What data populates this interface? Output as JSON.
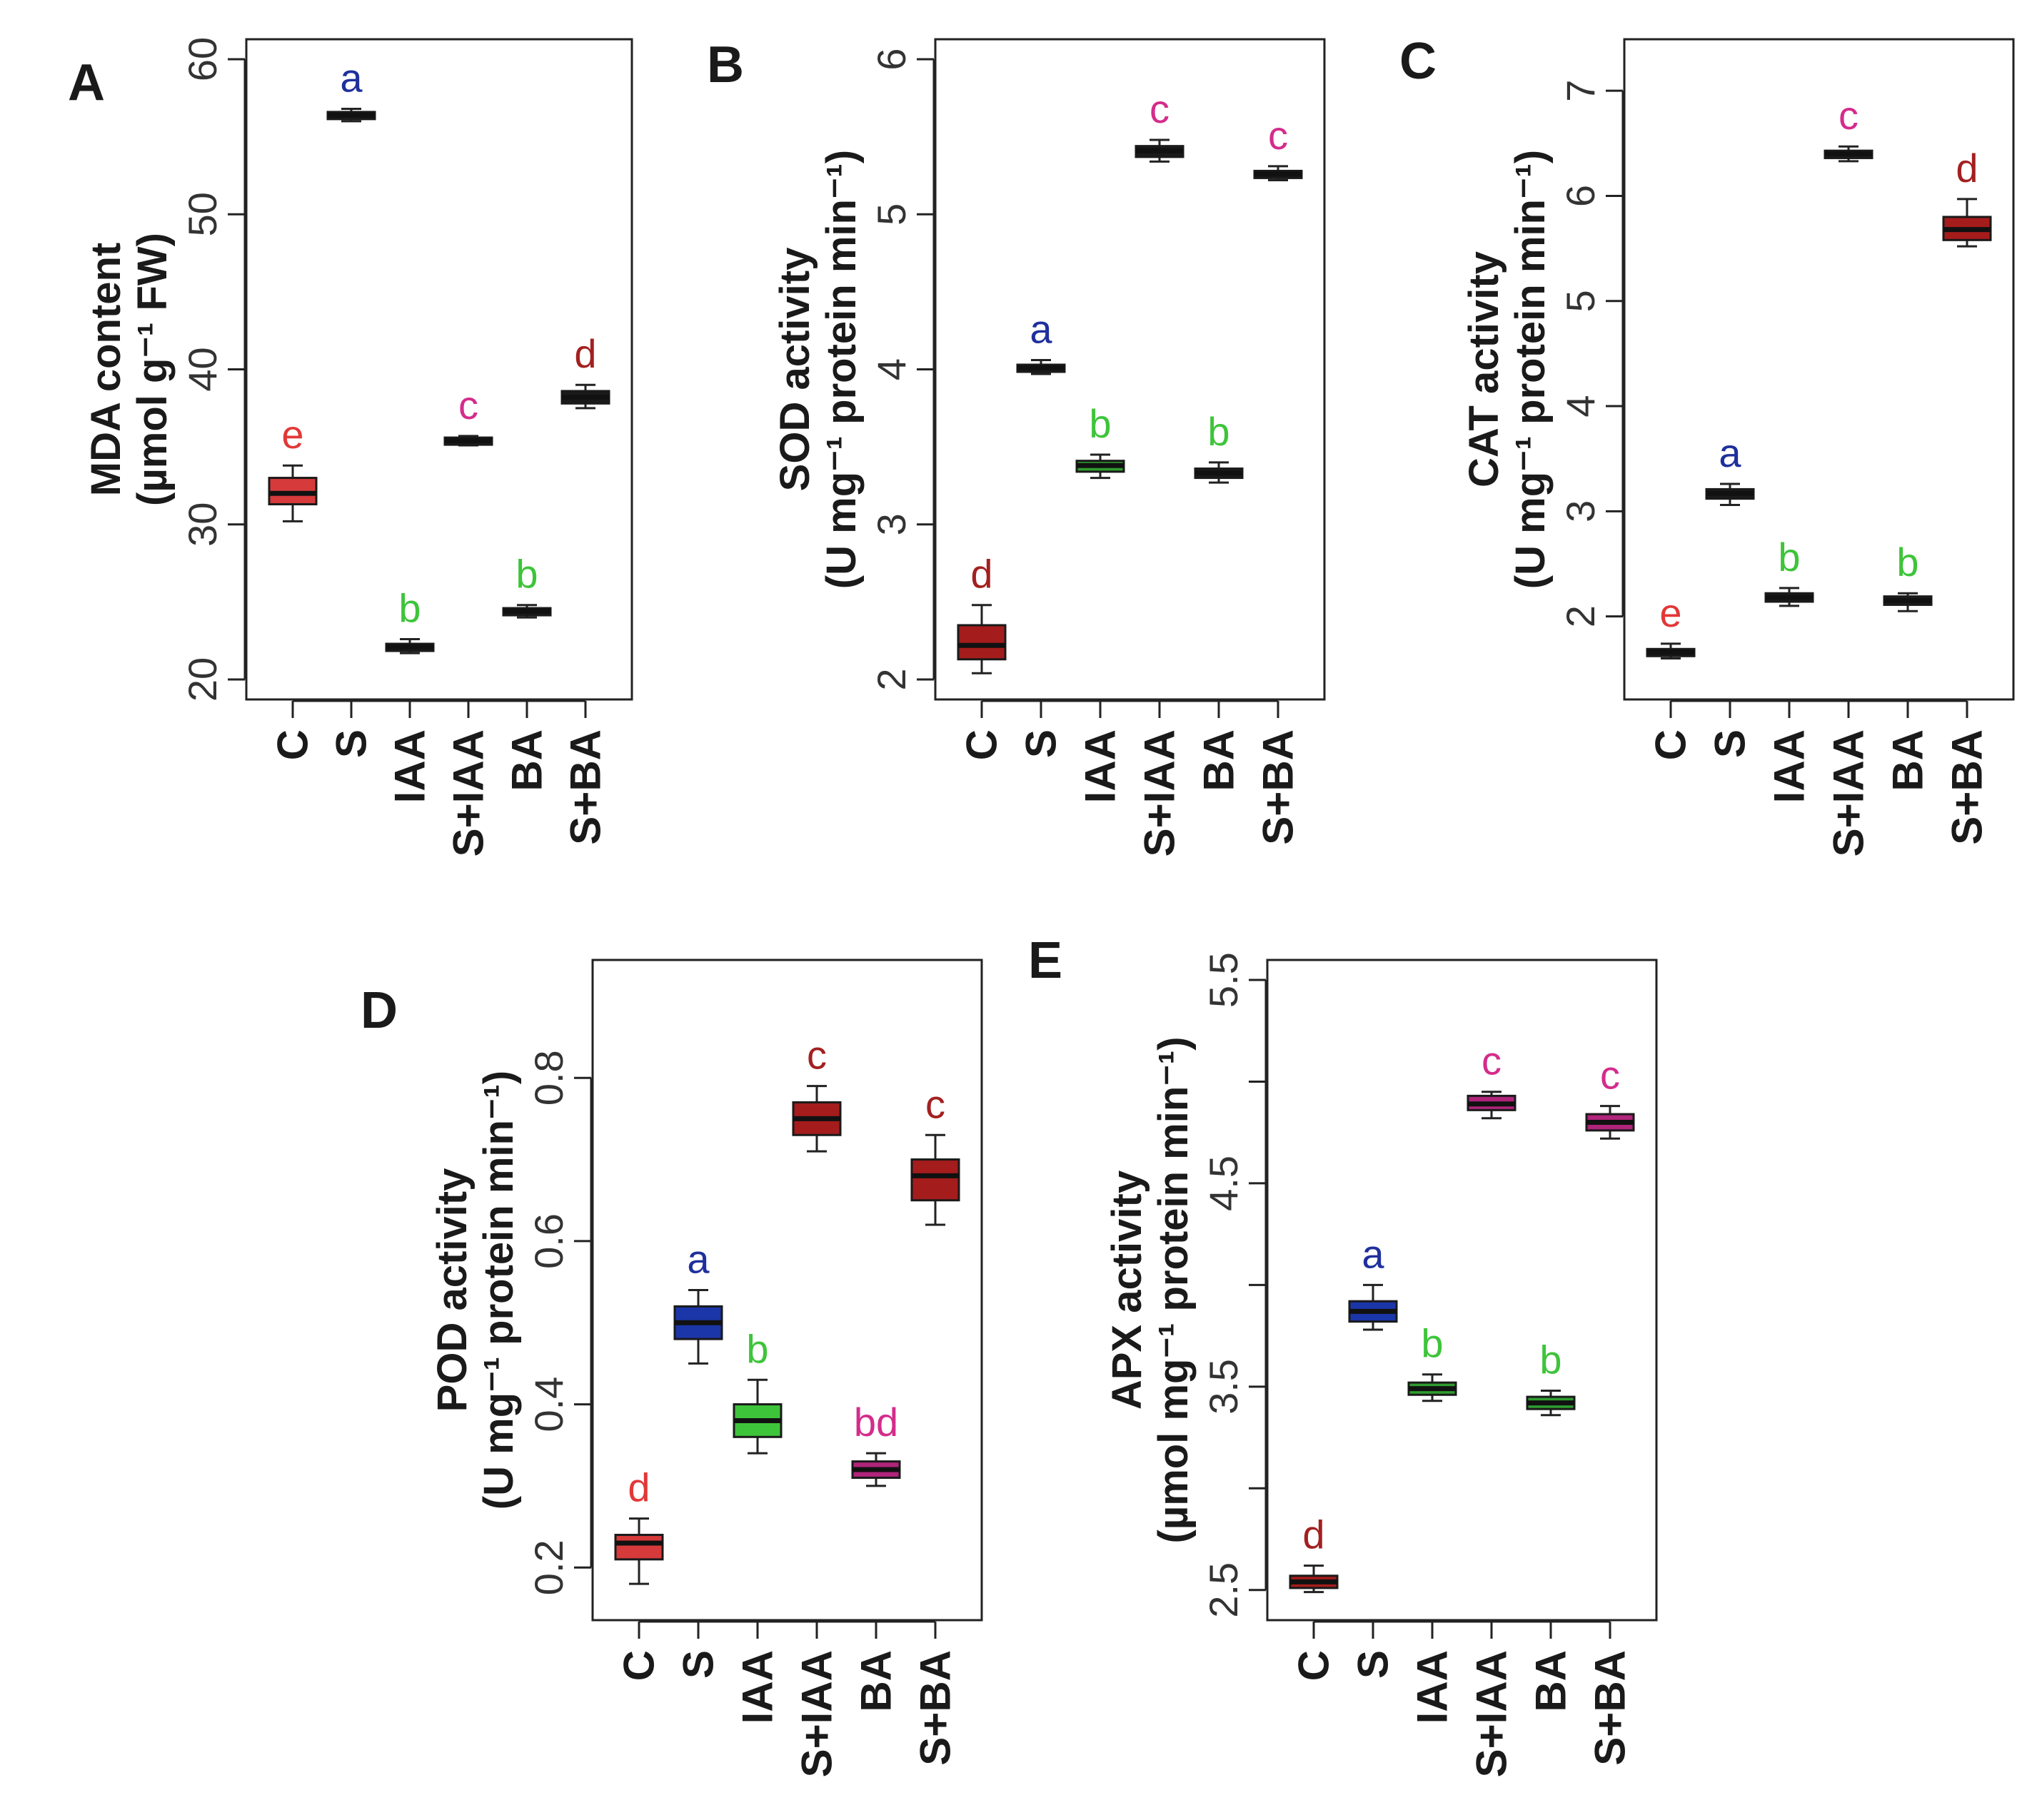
{
  "chart_data": [
    {
      "id": "A",
      "type": "box",
      "label": "A",
      "ylabel_line1": "MDA content",
      "ylabel_line2": "(µmol g⁻¹ FW)",
      "ylim": [
        20,
        60
      ],
      "yticks": [
        20,
        30,
        40,
        50,
        60
      ],
      "ytick_labels": [
        "20",
        "30",
        "40",
        "50",
        "60"
      ],
      "categories": [
        "C",
        "S",
        "IAA",
        "S+IAA",
        "BA",
        "S+BA"
      ],
      "boxes": [
        {
          "min": 30.2,
          "q1": 31.3,
          "median": 32.0,
          "q3": 33.0,
          "max": 33.8,
          "color": "#d63a3a",
          "letter": "e",
          "letter_color": "#e23838"
        },
        {
          "min": 56.0,
          "q1": 56.2,
          "median": 56.4,
          "q3": 56.6,
          "max": 56.8,
          "color": "#1a1a1a",
          "letter": "a",
          "letter_color": "#1f2f9c"
        },
        {
          "min": 21.7,
          "q1": 21.9,
          "median": 22.1,
          "q3": 22.3,
          "max": 22.6,
          "color": "#1a1a1a",
          "letter": "b",
          "letter_color": "#3ec43a"
        },
        {
          "min": 35.1,
          "q1": 35.2,
          "median": 35.4,
          "q3": 35.6,
          "max": 35.7,
          "color": "#1a1a1a",
          "letter": "c",
          "letter_color": "#d42c8c"
        },
        {
          "min": 24.0,
          "q1": 24.2,
          "median": 24.4,
          "q3": 24.6,
          "max": 24.8,
          "color": "#1a1a1a",
          "letter": "b",
          "letter_color": "#3ec43a"
        },
        {
          "min": 37.5,
          "q1": 37.8,
          "median": 38.2,
          "q3": 38.6,
          "max": 39.0,
          "color": "#1a1a1a",
          "letter": "d",
          "letter_color": "#a32020"
        }
      ]
    },
    {
      "id": "B",
      "type": "box",
      "label": "B",
      "ylabel_line1": "SOD activity",
      "ylabel_line2": "(U mg⁻¹ protein min⁻¹)",
      "ylim": [
        2,
        6
      ],
      "yticks": [
        2,
        3,
        4,
        5,
        6
      ],
      "ytick_labels": [
        "2",
        "3",
        "4",
        "5",
        "6"
      ],
      "categories": [
        "C",
        "S",
        "IAA",
        "S+IAA",
        "BA",
        "S+BA"
      ],
      "boxes": [
        {
          "min": 2.04,
          "q1": 2.13,
          "median": 2.22,
          "q3": 2.35,
          "max": 2.48,
          "color": "#a51c1c",
          "letter": "d",
          "letter_color": "#a32020"
        },
        {
          "min": 3.97,
          "q1": 3.99,
          "median": 4.01,
          "q3": 4.03,
          "max": 4.06,
          "color": "#1a1a1a",
          "letter": "a",
          "letter_color": "#1f2f9c"
        },
        {
          "min": 3.3,
          "q1": 3.34,
          "median": 3.38,
          "q3": 3.41,
          "max": 3.45,
          "color": "#2f9c2f",
          "letter": "b",
          "letter_color": "#3ec43a"
        },
        {
          "min": 5.34,
          "q1": 5.37,
          "median": 5.41,
          "q3": 5.44,
          "max": 5.48,
          "color": "#1a1a1a",
          "letter": "c",
          "letter_color": "#d42c8c"
        },
        {
          "min": 3.27,
          "q1": 3.3,
          "median": 3.33,
          "q3": 3.36,
          "max": 3.4,
          "color": "#1a1a1a",
          "letter": "b",
          "letter_color": "#3ec43a"
        },
        {
          "min": 5.22,
          "q1": 5.24,
          "median": 5.26,
          "q3": 5.28,
          "max": 5.31,
          "color": "#1a1a1a",
          "letter": "c",
          "letter_color": "#d42c8c"
        }
      ]
    },
    {
      "id": "C",
      "type": "box",
      "label": "C",
      "ylabel_line1": "CAT activity",
      "ylabel_line2": "(U mg⁻¹ protein min⁻¹)",
      "ylim": [
        1.4,
        7.3
      ],
      "yticks": [
        2,
        3,
        4,
        5,
        6,
        7
      ],
      "ytick_labels": [
        "2",
        "3",
        "4",
        "5",
        "6",
        "7"
      ],
      "categories": [
        "C",
        "S",
        "IAA",
        "S+IAA",
        "BA",
        "S+BA"
      ],
      "boxes": [
        {
          "min": 1.6,
          "q1": 1.63,
          "median": 1.66,
          "q3": 1.69,
          "max": 1.74,
          "color": "#1a1a1a",
          "letter": "e",
          "letter_color": "#e23838"
        },
        {
          "min": 3.06,
          "q1": 3.12,
          "median": 3.17,
          "q3": 3.21,
          "max": 3.26,
          "color": "#1a1a1a",
          "letter": "a",
          "letter_color": "#1f2f9c"
        },
        {
          "min": 2.1,
          "q1": 2.14,
          "median": 2.18,
          "q3": 2.22,
          "max": 2.27,
          "color": "#1a1a1a",
          "letter": "b",
          "letter_color": "#3ec43a"
        },
        {
          "min": 6.33,
          "q1": 6.36,
          "median": 6.4,
          "q3": 6.43,
          "max": 6.47,
          "color": "#1a1a1a",
          "letter": "c",
          "letter_color": "#d42c8c"
        },
        {
          "min": 2.05,
          "q1": 2.11,
          "median": 2.15,
          "q3": 2.19,
          "max": 2.22,
          "color": "#1a1a1a",
          "letter": "b",
          "letter_color": "#3ec43a"
        },
        {
          "min": 5.52,
          "q1": 5.58,
          "median": 5.68,
          "q3": 5.8,
          "max": 5.97,
          "color": "#a51c1c",
          "letter": "d",
          "letter_color": "#a32020"
        }
      ]
    },
    {
      "id": "D",
      "type": "box",
      "label": "D",
      "ylabel_line1": "POD activity",
      "ylabel_line2": "(U mg⁻¹ protein min⁻¹)",
      "ylim": [
        0.16,
        0.92
      ],
      "yticks": [
        0.2,
        0.4,
        0.6,
        0.8
      ],
      "ytick_labels": [
        "0.2",
        "0.4",
        "0.6",
        "0.8"
      ],
      "categories": [
        "C",
        "S",
        "IAA",
        "S+IAA",
        "BA",
        "S+BA"
      ],
      "boxes": [
        {
          "min": 0.18,
          "q1": 0.21,
          "median": 0.23,
          "q3": 0.24,
          "max": 0.26,
          "color": "#d63a3a",
          "letter": "d",
          "letter_color": "#e23838"
        },
        {
          "min": 0.45,
          "q1": 0.48,
          "median": 0.5,
          "q3": 0.52,
          "max": 0.54,
          "color": "#1b36a8",
          "letter": "a",
          "letter_color": "#1f2f9c"
        },
        {
          "min": 0.34,
          "q1": 0.36,
          "median": 0.38,
          "q3": 0.4,
          "max": 0.43,
          "color": "#3ec43a",
          "letter": "b",
          "letter_color": "#3ec43a"
        },
        {
          "min": 0.71,
          "q1": 0.73,
          "median": 0.75,
          "q3": 0.77,
          "max": 0.79,
          "color": "#a51c1c",
          "letter": "c",
          "letter_color": "#a32020"
        },
        {
          "min": 0.3,
          "q1": 0.31,
          "median": 0.32,
          "q3": 0.33,
          "max": 0.34,
          "color": "#b0247a",
          "letter": "bd",
          "letter_color": "#d42c8c"
        },
        {
          "min": 0.62,
          "q1": 0.65,
          "median": 0.68,
          "q3": 0.7,
          "max": 0.73,
          "color": "#a51c1c",
          "letter": "c",
          "letter_color": "#a32020"
        }
      ]
    },
    {
      "id": "E",
      "type": "box",
      "label": "E",
      "ylabel_line1": "APX activity",
      "ylabel_line2": "(µmol mg⁻¹ protein min⁻¹)",
      "ylim": [
        2.45,
        5.5
      ],
      "yticks": [
        2.5,
        3.0,
        3.5,
        4.0,
        4.5,
        5.0,
        5.5
      ],
      "ytick_labels": [
        "2.5",
        "",
        "3.5",
        "",
        "4.5",
        "",
        "5.5"
      ],
      "categories": [
        "C",
        "S",
        "IAA",
        "S+IAA",
        "BA",
        "S+BA"
      ],
      "boxes": [
        {
          "min": 2.49,
          "q1": 2.51,
          "median": 2.54,
          "q3": 2.57,
          "max": 2.62,
          "color": "#a51c1c",
          "letter": "d",
          "letter_color": "#a32020"
        },
        {
          "min": 3.78,
          "q1": 3.82,
          "median": 3.87,
          "q3": 3.92,
          "max": 4.0,
          "color": "#1b36a8",
          "letter": "a",
          "letter_color": "#1f2f9c"
        },
        {
          "min": 3.43,
          "q1": 3.46,
          "median": 3.49,
          "q3": 3.52,
          "max": 3.56,
          "color": "#2f9c2f",
          "letter": "b",
          "letter_color": "#3ec43a"
        },
        {
          "min": 4.82,
          "q1": 4.86,
          "median": 4.89,
          "q3": 4.93,
          "max": 4.95,
          "color": "#b0247a",
          "letter": "c",
          "letter_color": "#d42c8c"
        },
        {
          "min": 3.36,
          "q1": 3.39,
          "median": 3.42,
          "q3": 3.45,
          "max": 3.48,
          "color": "#2f9c2f",
          "letter": "b",
          "letter_color": "#3ec43a"
        },
        {
          "min": 4.72,
          "q1": 4.76,
          "median": 4.8,
          "q3": 4.84,
          "max": 4.88,
          "color": "#b0247a",
          "letter": "c",
          "letter_color": "#d42c8c"
        }
      ]
    }
  ]
}
